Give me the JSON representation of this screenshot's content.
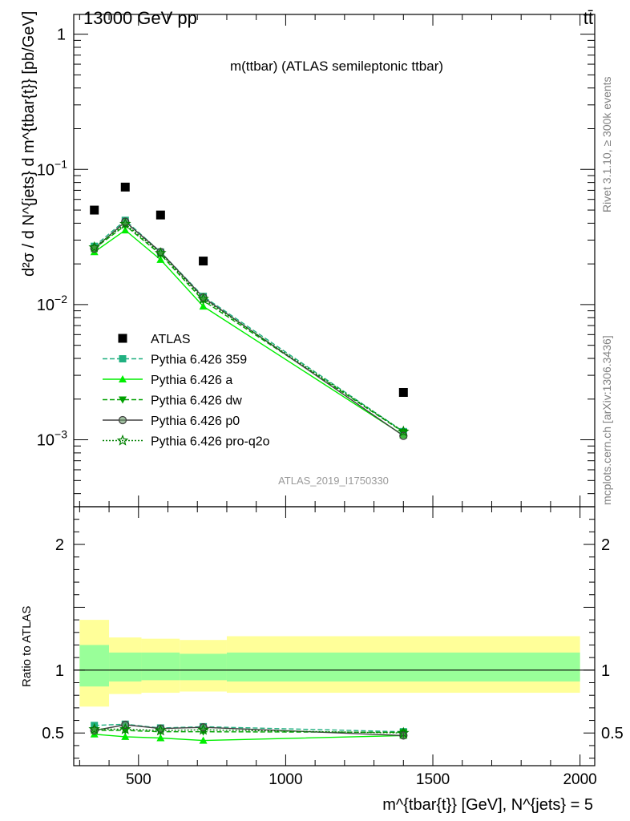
{
  "header": {
    "energy_label": "13000 GeV pp",
    "process_label": "tt̄"
  },
  "side_labels": {
    "rivet": "Rivet 3.1.10, ≥ 300k events",
    "mcplots": "mcplots.cern.ch [arXiv:1306.3436]"
  },
  "chart_data": {
    "type": "scatter",
    "title": "m(ttbar) (ATLAS semileptonic ttbar)",
    "analysis_id": "ATLAS_2019_I1750330",
    "ylabel_main": "d²σ / d N^{jets} d m^{tbar{t}} [pb/GeV]",
    "ylabel_ratio": "Ratio to ATLAS",
    "xlabel": "m^{tbar{t}} [GeV], N^{jets} = 5",
    "xlim": [
      280,
      2050
    ],
    "ylim_main": [
      0.00032,
      1.4
    ],
    "ylim_ratio": [
      0.24,
      2.3
    ],
    "x_ticks": [
      500,
      1000,
      1500,
      2000
    ],
    "y_ticks_main": [
      {
        "value": 1,
        "base": "1",
        "exp": ""
      },
      {
        "value": 0.1,
        "base": "10",
        "exp": "−1"
      },
      {
        "value": 0.01,
        "base": "10",
        "exp": "−2"
      },
      {
        "value": 0.001,
        "base": "10",
        "exp": "−3"
      }
    ],
    "y_ticks_ratio": [
      0.5,
      1,
      2
    ],
    "bins": [
      {
        "lo": 300,
        "hi": 400
      },
      {
        "lo": 400,
        "hi": 510
      },
      {
        "lo": 510,
        "hi": 640
      },
      {
        "lo": 640,
        "hi": 800
      },
      {
        "lo": 800,
        "hi": 2000
      }
    ],
    "band_inner": [
      [
        0.87,
        1.2
      ],
      [
        0.91,
        1.14
      ],
      [
        0.92,
        1.14
      ],
      [
        0.92,
        1.13
      ],
      [
        0.91,
        1.14
      ]
    ],
    "band_outer": [
      [
        0.71,
        1.4
      ],
      [
        0.81,
        1.26
      ],
      [
        0.82,
        1.25
      ],
      [
        0.83,
        1.24
      ],
      [
        0.82,
        1.27
      ]
    ],
    "x": [
      350,
      455,
      575,
      720,
      1400
    ],
    "data": {
      "name": "ATLAS",
      "values": [
        0.05,
        0.074,
        0.046,
        0.021,
        0.00224
      ],
      "color": "#000000"
    },
    "series": [
      {
        "name": "Pythia 6.426 359",
        "color": "#20b080",
        "dash": "6,3",
        "marker": "square",
        "values": [
          0.027,
          0.042,
          0.0245,
          0.0115,
          0.00115
        ],
        "ratio": [
          0.56,
          0.57,
          0.54,
          0.55,
          0.51
        ]
      },
      {
        "name": "Pythia 6.426 a",
        "color": "#00ee00",
        "dash": "",
        "marker": "triangle-up",
        "values": [
          0.0245,
          0.0355,
          0.0215,
          0.0097,
          0.00108
        ],
        "ratio": [
          0.49,
          0.47,
          0.46,
          0.44,
          0.48
        ]
      },
      {
        "name": "Pythia 6.426 dw",
        "color": "#00a000",
        "dash": "6,3",
        "marker": "triangle-down",
        "values": [
          0.026,
          0.0385,
          0.0235,
          0.0107,
          0.00114
        ],
        "ratio": [
          0.52,
          0.52,
          0.51,
          0.51,
          0.505
        ]
      },
      {
        "name": "Pythia 6.426 p0",
        "color": "#404040",
        "dash": "",
        "marker": "circle-open",
        "values": [
          0.026,
          0.041,
          0.0245,
          0.0113,
          0.00107
        ],
        "ratio": [
          0.52,
          0.565,
          0.535,
          0.545,
          0.48
        ]
      },
      {
        "name": "Pythia 6.426 pro-q2o",
        "color": "#008000",
        "dash": "2,2",
        "marker": "star",
        "values": [
          0.0265,
          0.0395,
          0.024,
          0.011,
          0.00115
        ],
        "ratio": [
          0.53,
          0.53,
          0.52,
          0.525,
          0.5
        ]
      }
    ]
  }
}
